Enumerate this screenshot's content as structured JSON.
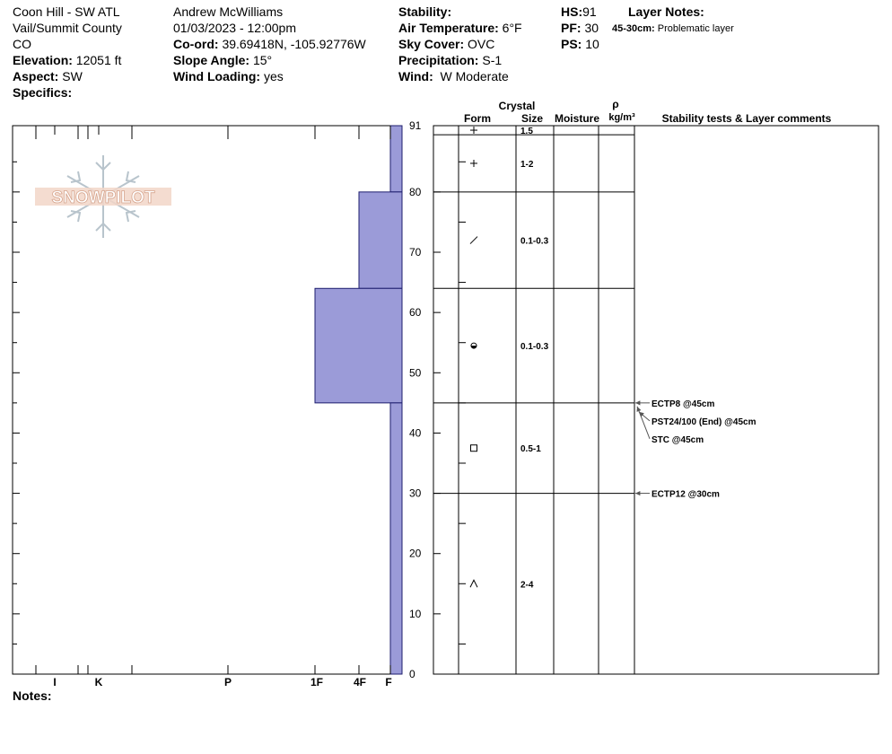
{
  "header": {
    "location": "Coon Hill - SW ATL",
    "region": "Vail/Summit County",
    "state": "CO",
    "elevation_label": "Elevation:",
    "elevation": "12051 ft",
    "aspect_label": "Aspect:",
    "aspect": "SW",
    "specifics_label": "Specifics:",
    "observer": "Andrew McWilliams",
    "datetime": "01/03/2023 - 12:00pm",
    "coord_label": "Co-ord:",
    "coord": "39.69418N, -105.92776W",
    "slope_label": "Slope Angle:",
    "slope": "15°",
    "wind_loading_label": "Wind Loading:",
    "wind_loading": "yes",
    "stability_label": "Stability:",
    "stability": "",
    "air_temp_label": "Air Temperature:",
    "air_temp": "6°F",
    "sky_label": "Sky Cover:",
    "sky": "OVC",
    "precip_label": "Precipitation:",
    "precip": "S-1",
    "wind_label": "Wind:",
    "wind": "W Moderate",
    "hs_label": "HS:",
    "hs": "91",
    "pf_label": "PF:",
    "pf": "30",
    "ps_label": "PS:",
    "ps": "10",
    "layer_notes_label": "Layer Notes:",
    "layer_note_depth": "45-30cm:",
    "layer_note_text": "Problematic layer",
    "notes_label": "Notes:"
  },
  "table_headers": {
    "crystal": "Crystal",
    "form": "Form",
    "size": "Size",
    "moisture": "Moisture",
    "rho": "ρ",
    "density_unit": "kg/m³",
    "comments": "Stability tests & Layer comments"
  },
  "logo_text": "SNOWPILOT",
  "colors": {
    "layer_fill": "#9b9bd8",
    "layer_stroke": "#1e1e6e"
  },
  "chart_data": {
    "type": "bar",
    "description_axis": "snow height (cm)",
    "y_ticks": [
      0,
      10,
      20,
      30,
      40,
      50,
      60,
      70,
      80,
      91
    ],
    "ylim": [
      0,
      91
    ],
    "hardness_ticks": [
      "I",
      "K",
      "P",
      "1F",
      "4F",
      "F"
    ],
    "layers": [
      {
        "top": 91,
        "bottom": 80,
        "hardness": "F",
        "form": "+",
        "size": "1.5"
      },
      {
        "top": 80,
        "bottom": 64,
        "hardness": "4F",
        "form": "/",
        "size": "1-2"
      },
      {
        "top": 64,
        "bottom": 45,
        "hardness": "1F",
        "form": "rnd",
        "size": "0.1-0.3"
      },
      {
        "top": 45,
        "bottom": 30,
        "hardness": "F",
        "form": "square",
        "size": "0.1-0.3"
      },
      {
        "top": 30,
        "bottom": 0,
        "hardness": "F",
        "form": "^",
        "size": "0.5-1"
      }
    ],
    "grain_rows": [
      {
        "top": 91,
        "bottom": 89.5,
        "form": "+",
        "size": "1.5"
      },
      {
        "top": 89.5,
        "bottom": 80,
        "form": "+",
        "size": "1-2"
      },
      {
        "top": 80,
        "bottom": 64,
        "form": "/",
        "size": "0.1-0.3"
      },
      {
        "top": 64,
        "bottom": 45,
        "form": "rnd",
        "size": "0.1-0.3"
      },
      {
        "top": 45,
        "bottom": 30,
        "form": "square",
        "size": "0.5-1"
      },
      {
        "top": 30,
        "bottom": 0,
        "form": "^",
        "size": "2-4"
      }
    ],
    "hardness_profile": [
      {
        "top": 91,
        "bottom": 80,
        "hardness": "F"
      },
      {
        "top": 80,
        "bottom": 64,
        "hardness": "4F"
      },
      {
        "top": 64,
        "bottom": 45,
        "hardness": "1F"
      },
      {
        "top": 45,
        "bottom": 0,
        "hardness": "F"
      }
    ],
    "stability_tests": [
      {
        "depth": 45,
        "text": "ECTP8 @45cm"
      },
      {
        "depth": 45,
        "text": "PST24/100 (End) @45cm"
      },
      {
        "depth": 45,
        "text": "STC @45cm"
      },
      {
        "depth": 30,
        "text": "ECTP12 @30cm"
      }
    ]
  }
}
